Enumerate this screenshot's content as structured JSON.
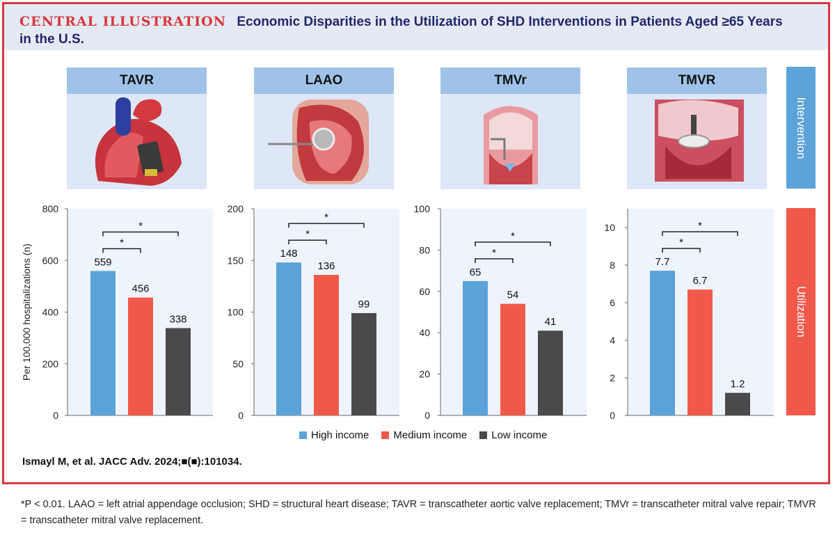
{
  "header": {
    "label": "CENTRAL ILLUSTRATION",
    "title_line1": "Economic Disparities in the Utilization of SHD Interventions in Patients Aged ≥65 Years",
    "title_line2": "in the U.S."
  },
  "side_labels": {
    "intervention": "Intervention",
    "utilization": "Utilization"
  },
  "colors": {
    "high": "#5ba3d9",
    "medium": "#f0594a",
    "low": "#4a4a4c",
    "intervention_bar": "#5ba3d9",
    "utilization_bar": "#f0594a"
  },
  "legend": [
    {
      "name": "High income",
      "color": "#5ba3d9"
    },
    {
      "name": "Medium income",
      "color": "#f0594a"
    },
    {
      "name": "Low income",
      "color": "#4a4a4c"
    }
  ],
  "chart_data": [
    {
      "type": "bar",
      "title": "TAVR",
      "categories": [
        "High income",
        "Medium income",
        "Low income"
      ],
      "values": [
        559,
        456,
        338
      ],
      "labels": [
        "559",
        "456",
        "338"
      ],
      "ylabel": "Per 100,000 hospitalizations (n)",
      "ylim": [
        0,
        800
      ],
      "ticks": [
        0,
        200,
        400,
        600,
        800
      ],
      "tick_labels": [
        "0",
        "200",
        "400",
        "600",
        "800"
      ],
      "significance": [
        "*",
        "*"
      ]
    },
    {
      "type": "bar",
      "title": "LAAO",
      "categories": [
        "High income",
        "Medium income",
        "Low income"
      ],
      "values": [
        148,
        136,
        99
      ],
      "labels": [
        "148",
        "136",
        "99"
      ],
      "ylabel": "",
      "ylim": [
        0,
        200
      ],
      "ticks": [
        0,
        50,
        100,
        150,
        200
      ],
      "tick_labels": [
        "0",
        "50",
        "100",
        "150",
        "200"
      ],
      "significance": [
        "*",
        "*"
      ]
    },
    {
      "type": "bar",
      "title": "TMVr",
      "categories": [
        "High income",
        "Medium income",
        "Low income"
      ],
      "values": [
        65,
        54,
        41
      ],
      "labels": [
        "65",
        "54",
        "41"
      ],
      "ylabel": "",
      "ylim": [
        0,
        100
      ],
      "ticks": [
        0,
        20,
        40,
        60,
        80,
        100
      ],
      "tick_labels": [
        "0",
        "20",
        "40",
        "60",
        "80",
        "100"
      ],
      "significance": [
        "*",
        "*"
      ]
    },
    {
      "type": "bar",
      "title": "TMVR",
      "categories": [
        "High income",
        "Medium income",
        "Low income"
      ],
      "values": [
        7.7,
        6.7,
        1.2
      ],
      "labels": [
        "7.7",
        "6.7",
        "1.2"
      ],
      "ylabel": "",
      "ylim": [
        0,
        11
      ],
      "ticks": [
        0,
        2,
        4,
        6,
        8,
        10
      ],
      "tick_labels": [
        "0",
        "2",
        "4",
        "6",
        "8",
        "10"
      ],
      "significance": [
        "*",
        "*"
      ]
    }
  ],
  "citation": "Ismayl M, et al. JACC Adv. 2024;■(■):101034.",
  "footnote": "*P < 0.01. LAAO = left atrial appendage occlusion; SHD = structural heart disease; TAVR = transcatheter aortic valve replacement; TMVr = transcatheter mitral valve repair; TMVR = transcatheter mitral valve replacement."
}
